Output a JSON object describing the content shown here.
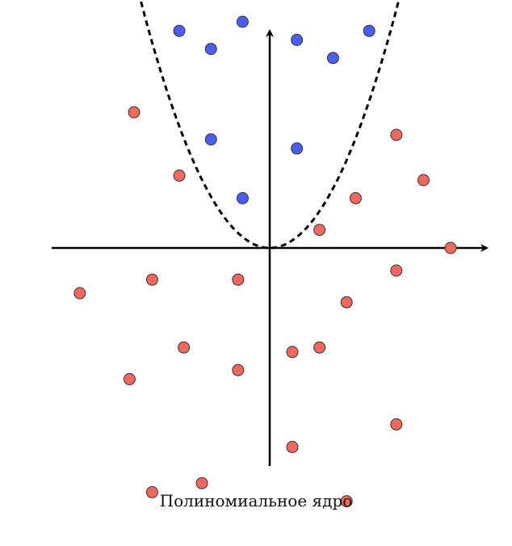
{
  "caption": "Полиномиальное ядро",
  "colors": {
    "class_a": "#4a5ff0",
    "class_b": "#ef6a5e",
    "stroke": "#333333",
    "axis": "#000000",
    "boundary": "#000000"
  },
  "diagram": {
    "class_a_points": [
      [
        -2,
        4.8
      ],
      [
        -1.3,
        4.4
      ],
      [
        -0.6,
        5.0
      ],
      [
        0.6,
        4.6
      ],
      [
        1.4,
        4.2
      ],
      [
        2.2,
        4.8
      ],
      [
        -1.3,
        2.4
      ],
      [
        0.6,
        2.2
      ],
      [
        -0.6,
        1.1
      ]
    ],
    "class_b_points": [
      [
        -3.0,
        3.0
      ],
      [
        -2.0,
        1.6
      ],
      [
        2.8,
        2.5
      ],
      [
        3.4,
        1.5
      ],
      [
        1.9,
        1.1
      ],
      [
        1.1,
        0.4
      ],
      [
        4.0,
        0.0
      ],
      [
        -4.2,
        -1.0
      ],
      [
        -2.6,
        -0.7
      ],
      [
        -0.7,
        -0.7
      ],
      [
        2.8,
        -0.5
      ],
      [
        1.7,
        -1.2
      ],
      [
        -1.9,
        -2.2
      ],
      [
        -3.1,
        -2.9
      ],
      [
        -0.7,
        -2.7
      ],
      [
        0.5,
        -2.3
      ],
      [
        1.1,
        -2.2
      ],
      [
        2.8,
        -3.9
      ],
      [
        0.5,
        -4.4
      ],
      [
        -2.6,
        -5.4
      ],
      [
        -1.5,
        -5.2
      ],
      [
        1.7,
        -5.6
      ]
    ],
    "boundary": {
      "type": "parabola",
      "a": 0.28,
      "x_range": [
        -2.9,
        2.9
      ]
    },
    "axes": {
      "x_arrow": true,
      "y_arrow": true
    }
  }
}
